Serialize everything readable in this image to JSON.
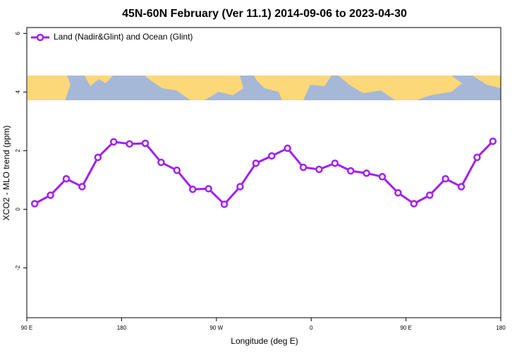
{
  "chart_data": {
    "type": "line",
    "title": "45N-60N February (Ver 11.1)   2014-09-06 to 2023-04-30",
    "x_label": "Longitude (deg E)",
    "y_label": "XCO2 - MLO trend (ppm)",
    "x": [
      97.5,
      112.5,
      127.5,
      142.5,
      157.5,
      172.5,
      187.5,
      202.5,
      217.5,
      232.5,
      247.5,
      262.5,
      277.5,
      292.5,
      307.5,
      322.5,
      337.5,
      352.5,
      367.5,
      382.5,
      397.5,
      412.5,
      427.5,
      442.5,
      457.5,
      472.5,
      487.5,
      502.5,
      517.5,
      532.5
    ],
    "series": [
      {
        "name": "Land (Nadir&Glint) and Ocean (Glint)",
        "color": "#a020f0",
        "values": [
          0.19,
          0.48,
          1.04,
          0.77,
          1.77,
          2.3,
          2.23,
          2.25,
          1.6,
          1.33,
          0.68,
          0.7,
          0.17,
          0.77,
          1.57,
          1.82,
          2.08,
          1.43,
          1.36,
          1.57,
          1.31,
          1.23,
          1.11,
          0.56,
          0.19,
          0.48,
          1.04,
          0.77,
          1.77,
          2.32
        ]
      }
    ],
    "xlim": [
      90,
      540
    ],
    "xticks": [
      {
        "value": 90,
        "label": "90 E"
      },
      180,
      {
        "value": 270,
        "label": "90 W"
      },
      {
        "value": 360,
        "label": "0"
      },
      {
        "value": 450,
        "label": "90 E"
      },
      {
        "value": 540,
        "label": "180"
      }
    ],
    "ylim": [
      -3.7,
      6.2
    ],
    "yticks": [
      -2,
      0,
      2,
      4,
      6
    ],
    "legend": "top-left"
  }
}
